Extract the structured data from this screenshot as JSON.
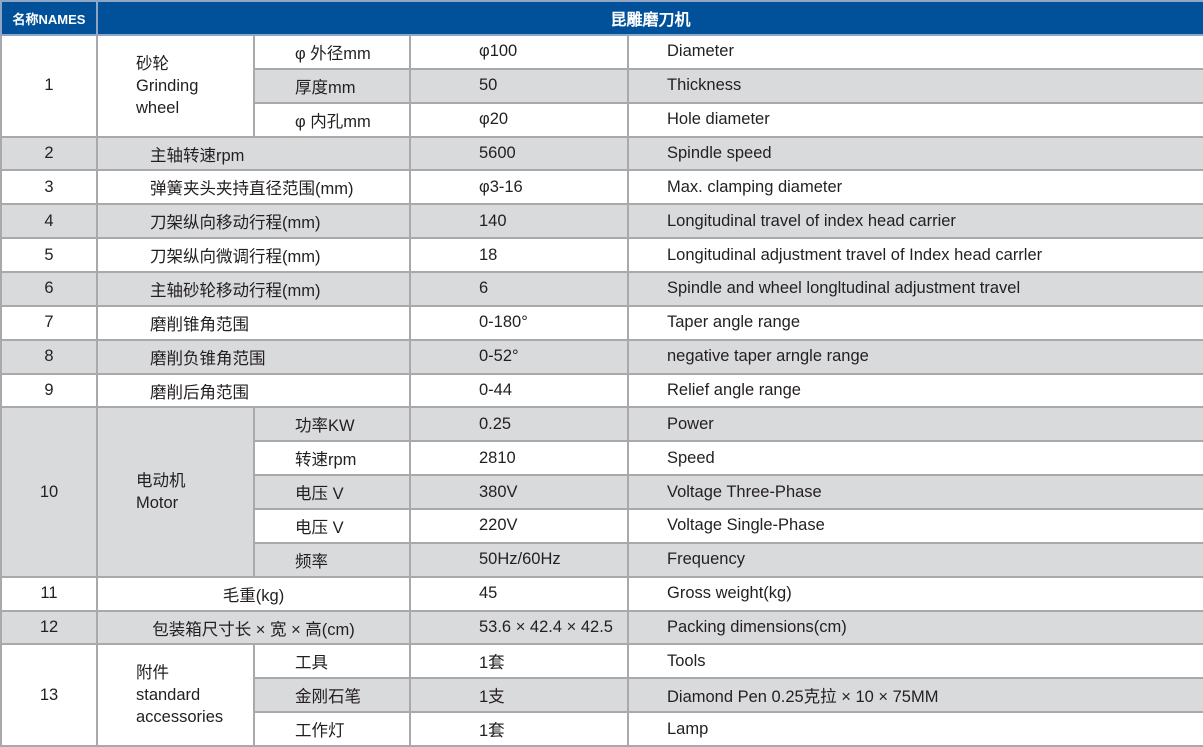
{
  "header": {
    "names_label": "名称NAMES",
    "title": "昆雕磨刀机"
  },
  "colors": {
    "header_bg": "#00509a",
    "shade": "#d9dadc",
    "border": "#a9a9ab"
  },
  "items": [
    {
      "no": "1",
      "name": "砂轮",
      "name_en": "Grinding wheel",
      "subs": [
        {
          "label": "φ 外径mm",
          "value": "φ100",
          "desc": "Diameter"
        },
        {
          "label": "厚度mm",
          "value": "50",
          "desc": "Thickness"
        },
        {
          "label": "φ 内孔mm",
          "value": "φ20",
          "desc": "Hole diameter"
        }
      ]
    },
    {
      "no": "2",
      "name": "主轴转速rpm",
      "value": "5600",
      "desc": "Spindle speed"
    },
    {
      "no": "3",
      "name": "弹簧夹头夹持直径范围(mm)",
      "value": "φ3-16",
      "desc": "Max. clamping diameter"
    },
    {
      "no": "4",
      "name": "刀架纵向移动行程(mm)",
      "value": "140",
      "desc": "Longitudinal travel of index head carrier"
    },
    {
      "no": "5",
      "name": "刀架纵向微调行程(mm)",
      "value": "18",
      "desc": "Longitudinal adjustment  travel of Index head carrler"
    },
    {
      "no": "6",
      "name": "主轴砂轮移动行程(mm)",
      "value": "6",
      "desc": "Spindle and wheel longltudinal adjustment  travel"
    },
    {
      "no": "7",
      "name": "磨削锥角范围",
      "value": "0-180°",
      "desc": "Taper angle range"
    },
    {
      "no": "8",
      "name": "磨削负锥角范围",
      "value": "0-52°",
      "desc": "negative taper arngle range"
    },
    {
      "no": "9",
      "name": "磨削后角范围",
      "value": "0-44",
      "desc": "Relief angle range"
    },
    {
      "no": "10",
      "name": "电动机",
      "name_en": "Motor",
      "subs": [
        {
          "label": "功率KW",
          "value": "0.25",
          "desc": "Power"
        },
        {
          "label": "转速rpm",
          "value": "2810",
          "desc": "Speed"
        },
        {
          "label": "电压  V",
          "value": "380V",
          "desc": "Voltage Three-Phase"
        },
        {
          "label": "电压  V",
          "value": "220V",
          "desc": "Voltage Single-Phase"
        },
        {
          "label": "频率",
          "value": "50Hz/60Hz",
          "desc": "Frequency"
        }
      ]
    },
    {
      "no": "11",
      "name": "毛重(kg)",
      "value": "45",
      "desc": "Gross weight(kg)"
    },
    {
      "no": "12",
      "name": "包装箱尺寸长 × 宽 × 高(cm)",
      "value": "53.6 × 42.4 × 42.5",
      "desc": "Packing dimensions(cm)"
    },
    {
      "no": "13",
      "name": "附件",
      "name_en": "standard accessories",
      "subs": [
        {
          "label": "工具",
          "value": "1套",
          "desc": "Tools"
        },
        {
          "label": "金刚石笔",
          "value": "1支",
          "desc": "Diamond Pen 0.25克拉 × 10 × 75MM"
        },
        {
          "label": "工作灯",
          "value": "1套",
          "desc": "Lamp"
        }
      ]
    }
  ]
}
